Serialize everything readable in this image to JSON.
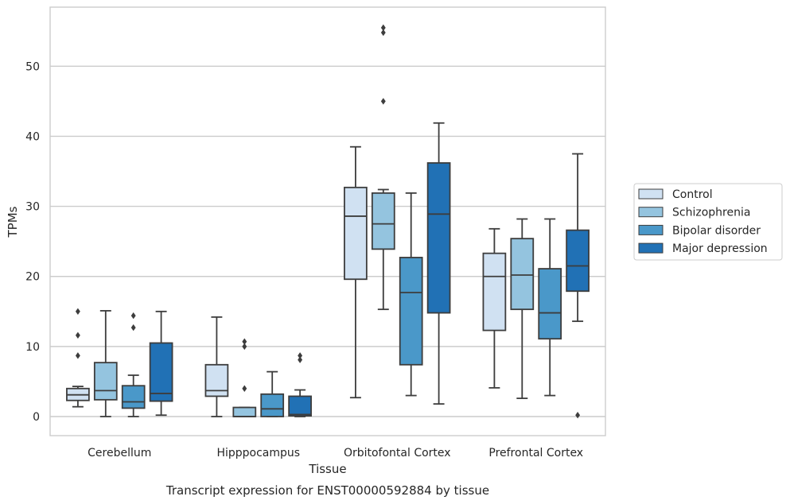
{
  "chart_data": {
    "type": "box",
    "title": "",
    "caption": "Transcript expression for ENST00000592884 by tissue",
    "xlabel": "Tissue",
    "ylabel": "TPMs",
    "ylim": [
      -2.6,
      58.6
    ],
    "yticks": [
      0,
      10,
      20,
      30,
      40,
      50
    ],
    "grid": "horizontal",
    "legend_position": "right",
    "categories": [
      "Cerebellum",
      "Hipppocampus",
      "Orbitofontal Cortex",
      "Prefrontal Cortex"
    ],
    "series": [
      {
        "name": "Control",
        "color": "#d0e1f2",
        "boxes": [
          {
            "whislo": 1.4,
            "q1": 2.3,
            "med": 3.1,
            "q3": 4.0,
            "whishi": 4.3,
            "fliers": [
              8.7,
              11.6,
              15.0
            ]
          },
          {
            "whislo": 0.0,
            "q1": 2.9,
            "med": 3.7,
            "q3": 7.4,
            "whishi": 14.2,
            "fliers": []
          },
          {
            "whislo": 2.7,
            "q1": 19.6,
            "med": 28.6,
            "q3": 32.7,
            "whishi": 38.5,
            "fliers": []
          },
          {
            "whislo": 4.1,
            "q1": 12.3,
            "med": 20.0,
            "q3": 23.3,
            "whishi": 26.8,
            "fliers": []
          }
        ]
      },
      {
        "name": "Schizophrenia",
        "color": "#94c4df",
        "boxes": [
          {
            "whislo": 0.0,
            "q1": 2.4,
            "med": 3.7,
            "q3": 7.7,
            "whishi": 15.1,
            "fliers": []
          },
          {
            "whislo": 0.0,
            "q1": 0.0,
            "med": 0.0,
            "q3": 1.3,
            "whishi": 1.3,
            "fliers": [
              4.0,
              10.0,
              10.7
            ]
          },
          {
            "whislo": 15.3,
            "q1": 23.9,
            "med": 27.5,
            "q3": 31.9,
            "whishi": 32.4,
            "fliers": [
              45.0,
              54.8,
              55.5
            ]
          },
          {
            "whislo": 2.6,
            "q1": 15.3,
            "med": 20.2,
            "q3": 25.4,
            "whishi": 28.2,
            "fliers": []
          }
        ]
      },
      {
        "name": "Bipolar disorder",
        "color": "#4a98c9",
        "boxes": [
          {
            "whislo": 0.0,
            "q1": 1.2,
            "med": 2.1,
            "q3": 4.4,
            "whishi": 5.9,
            "fliers": [
              12.7,
              14.4
            ]
          },
          {
            "whislo": 0.0,
            "q1": 0.0,
            "med": 1.1,
            "q3": 3.2,
            "whishi": 6.4,
            "fliers": []
          },
          {
            "whislo": 3.0,
            "q1": 7.4,
            "med": 17.7,
            "q3": 22.7,
            "whishi": 31.9,
            "fliers": []
          },
          {
            "whislo": 3.0,
            "q1": 11.1,
            "med": 14.8,
            "q3": 21.1,
            "whishi": 28.2,
            "fliers": []
          }
        ]
      },
      {
        "name": "Major depression",
        "color": "#2171b5",
        "boxes": [
          {
            "whislo": 0.2,
            "q1": 2.2,
            "med": 3.3,
            "q3": 10.5,
            "whishi": 15.0,
            "fliers": []
          },
          {
            "whislo": 0.0,
            "q1": 0.1,
            "med": 0.3,
            "q3": 2.9,
            "whishi": 3.8,
            "fliers": [
              8.1,
              8.7
            ]
          },
          {
            "whislo": 1.8,
            "q1": 14.8,
            "med": 28.9,
            "q3": 36.2,
            "whishi": 41.9,
            "fliers": []
          },
          {
            "whislo": 13.6,
            "q1": 17.9,
            "med": 21.5,
            "q3": 26.6,
            "whishi": 37.5,
            "fliers": [
              0.2
            ]
          }
        ]
      }
    ]
  }
}
